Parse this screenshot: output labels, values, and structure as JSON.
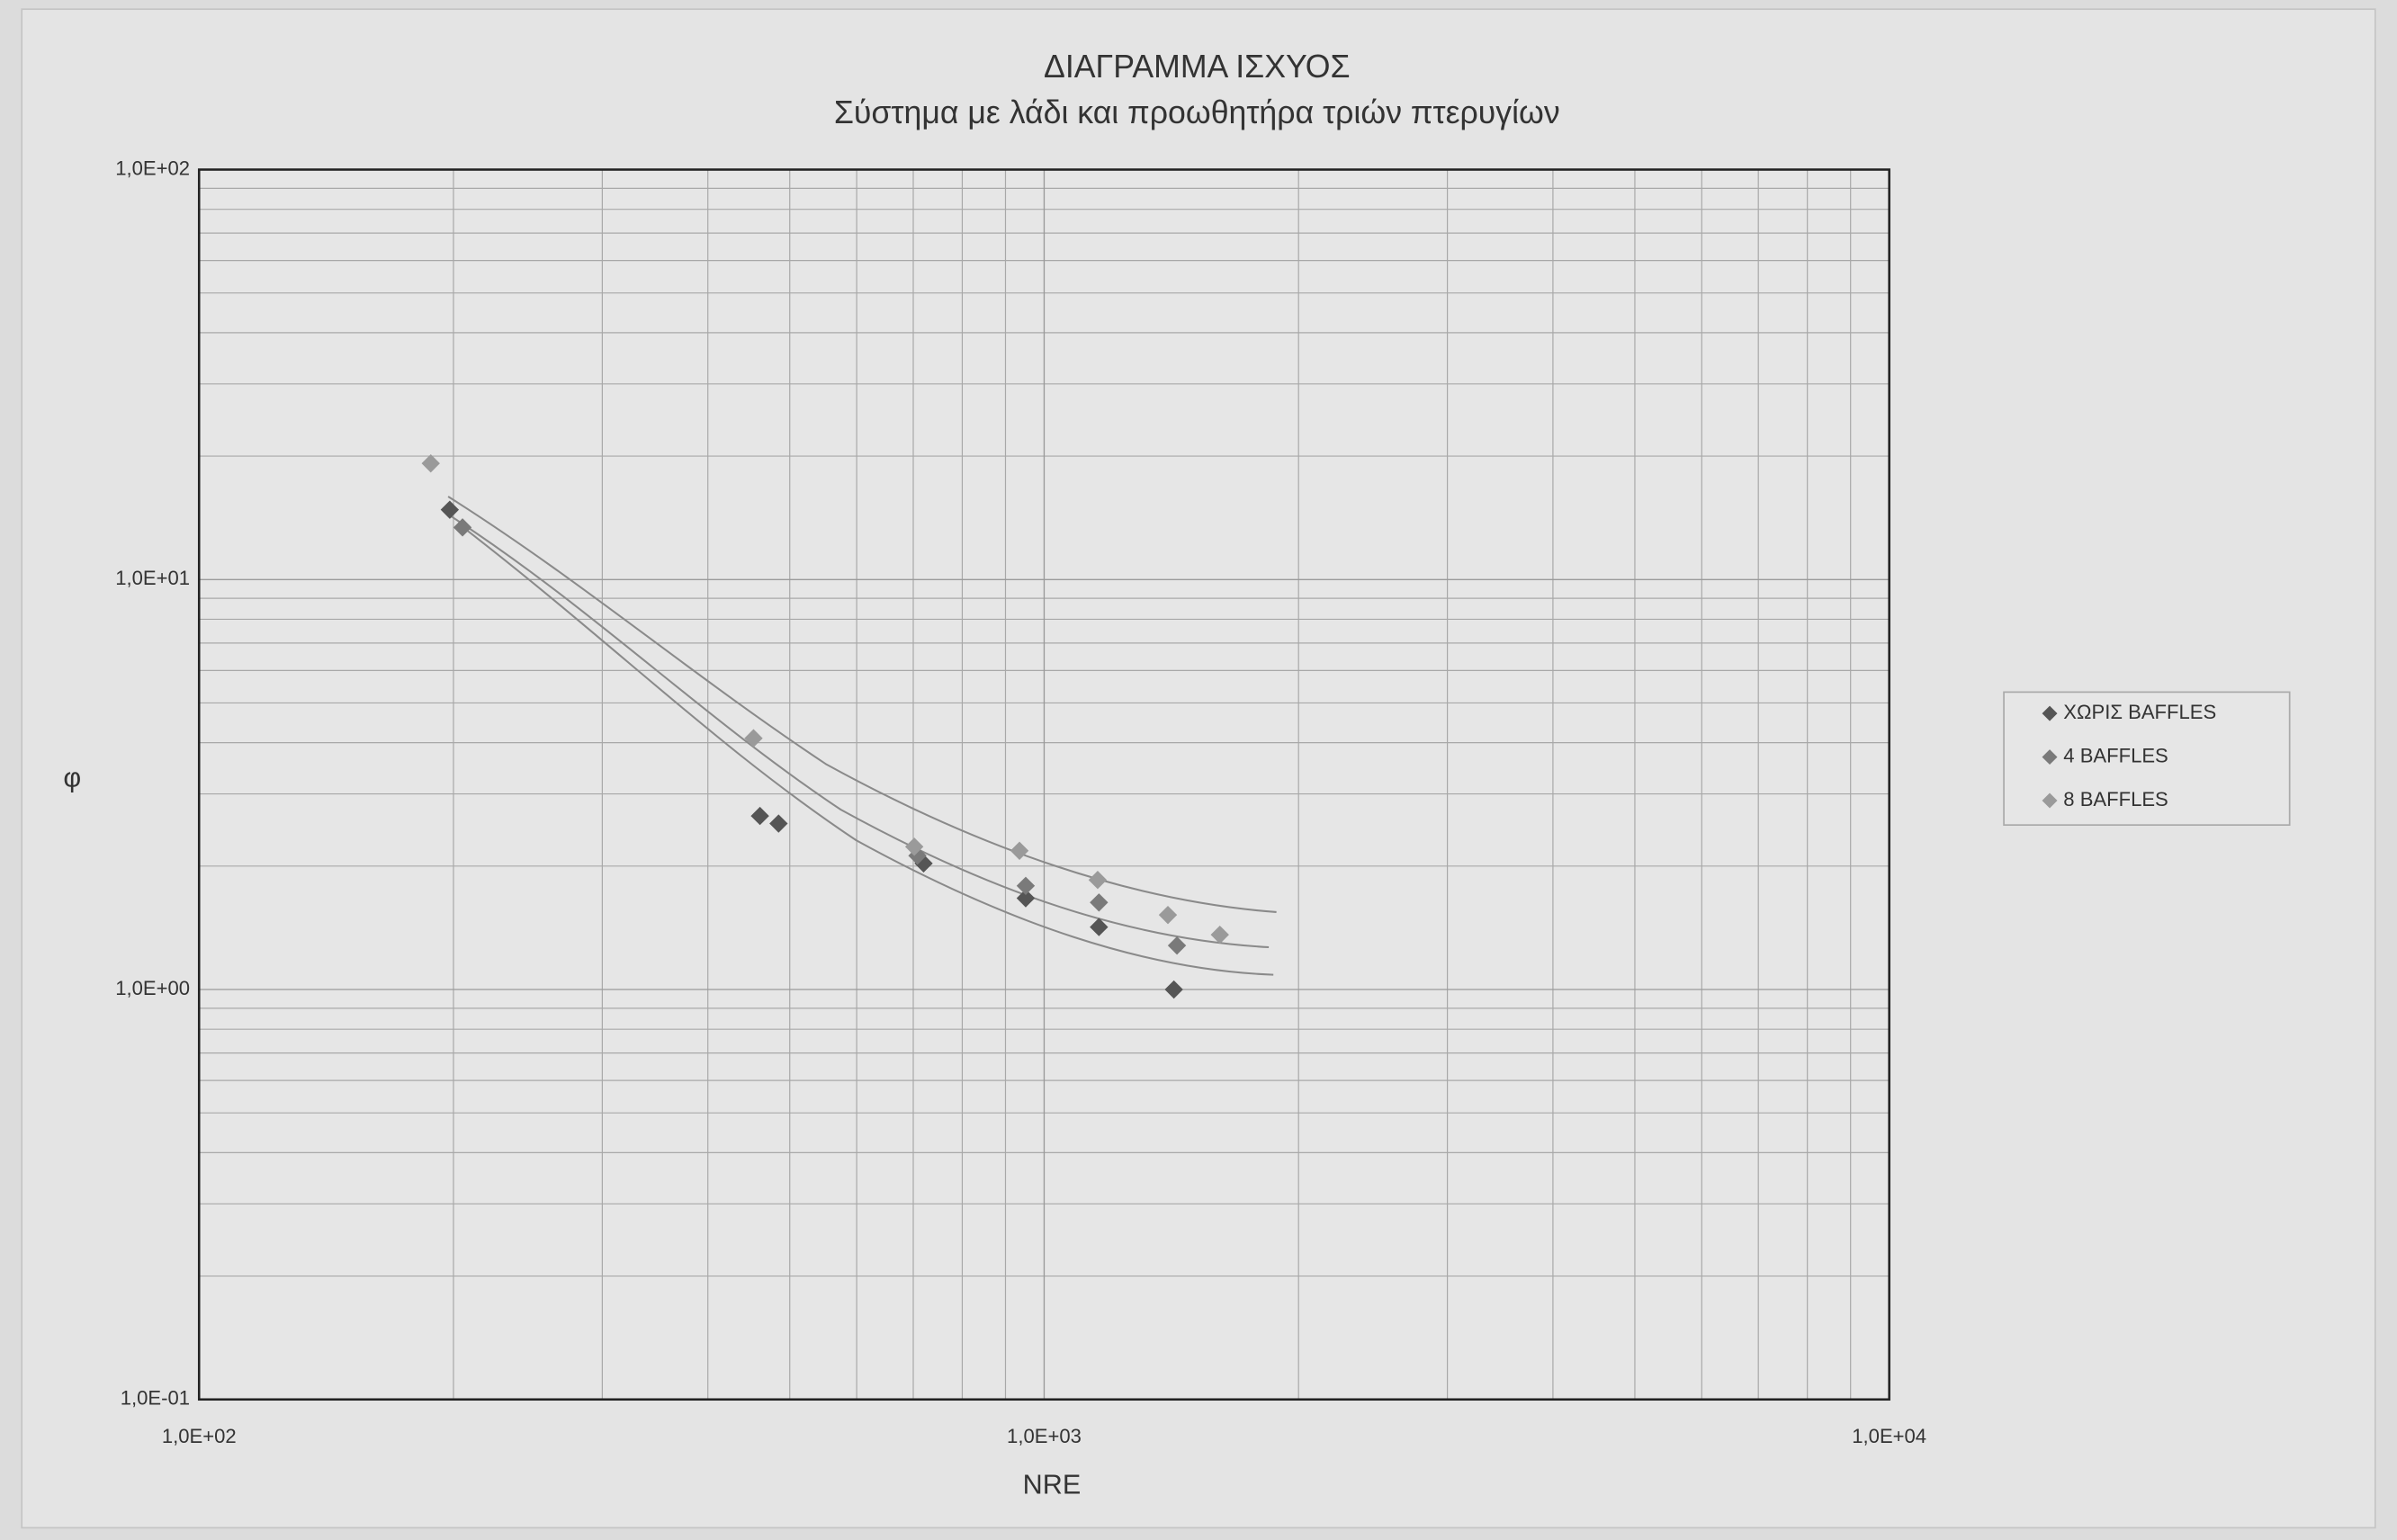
{
  "chart_data": {
    "type": "scatter",
    "title": "ΔΙΑΓΡΑΜΜΑ ΙΣΧΥΟΣ",
    "subtitle": "Σύστημα με λάδι και προωθητήρα τριών πτερυγίων",
    "x_label": "NRE",
    "y_label": "φ",
    "x_log": true,
    "y_log": true,
    "grid": true,
    "minor_grid": true,
    "legend": "right",
    "xlim": [
      100,
      10000
    ],
    "ylim": [
      0.1,
      100
    ],
    "xticks": [
      {
        "value": 100,
        "label": "1,0E+02"
      },
      {
        "value": 1000,
        "label": "1,0E+03"
      },
      {
        "value": 10000,
        "label": "1,0E+04"
      }
    ],
    "yticks": [
      {
        "value": 0.1,
        "label": "1,0E-01"
      },
      {
        "value": 1,
        "label": "1,0E+00"
      },
      {
        "value": 10,
        "label": "1,0E+01"
      },
      {
        "value": 100,
        "label": "1,0E+02"
      }
    ],
    "series": [
      {
        "name": "ΧΩΡΙΣ BAFFLES",
        "color": "#555555",
        "x": [
          198,
          461,
          485,
          720,
          951,
          1161,
          1424
        ],
        "values": [
          14.8,
          2.65,
          2.54,
          2.03,
          1.67,
          1.42,
          1.0
        ]
      },
      {
        "name": "4 BAFFLES",
        "color": "#7a7a7a",
        "x": [
          205,
          708,
          951,
          1161,
          1436
        ],
        "values": [
          13.4,
          2.12,
          1.79,
          1.63,
          1.28
        ]
      },
      {
        "name": "8 BAFFLES",
        "color": "#9a9a9a",
        "x": [
          188,
          453,
          702,
          935,
          1157,
          1401,
          1614
        ],
        "values": [
          19.2,
          4.1,
          2.23,
          2.18,
          1.85,
          1.52,
          1.36
        ]
      }
    ]
  }
}
